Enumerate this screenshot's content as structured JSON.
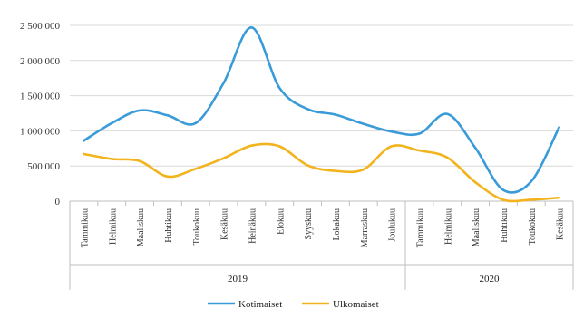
{
  "chart_data": {
    "type": "line",
    "title": "",
    "xlabel": "",
    "ylabel": "",
    "ylim": [
      0,
      2500000
    ],
    "y_ticks": [
      0,
      500000,
      1000000,
      1500000,
      2000000,
      2500000
    ],
    "y_tick_labels": [
      "0",
      "500 000",
      "1 000 000",
      "1 500 000",
      "2 000 000",
      "2 500 000"
    ],
    "grid": "horizontal",
    "legend_position": "bottom",
    "categories": [
      "Tammikuu",
      "Helmikuu",
      "Maaliskuu",
      "Huhtikuu",
      "Toukokuu",
      "Kesäkuu",
      "Heinäkuu",
      "Elokuu",
      "Syyskuu",
      "Lokakuu",
      "Marraskuu",
      "Joulukuu",
      "Tammikuu",
      "Helmikuu",
      "Maaliskuu",
      "Huhtikuu",
      "Toukokuu",
      "Kesäkuu"
    ],
    "groups": [
      {
        "label": "2019",
        "start": 0,
        "end": 11
      },
      {
        "label": "2020",
        "start": 12,
        "end": 17
      }
    ],
    "series": [
      {
        "name": "Kotimaiset",
        "color": "#3a9bd9",
        "values": [
          860000,
          1110000,
          1290000,
          1220000,
          1110000,
          1680000,
          2470000,
          1610000,
          1310000,
          1230000,
          1100000,
          990000,
          960000,
          1240000,
          760000,
          160000,
          280000,
          1050000
        ]
      },
      {
        "name": "Ulkomaiset",
        "color": "#f2b31d",
        "values": [
          670000,
          600000,
          570000,
          350000,
          460000,
          610000,
          790000,
          780000,
          510000,
          430000,
          450000,
          780000,
          720000,
          620000,
          270000,
          20000,
          20000,
          50000
        ]
      }
    ]
  }
}
